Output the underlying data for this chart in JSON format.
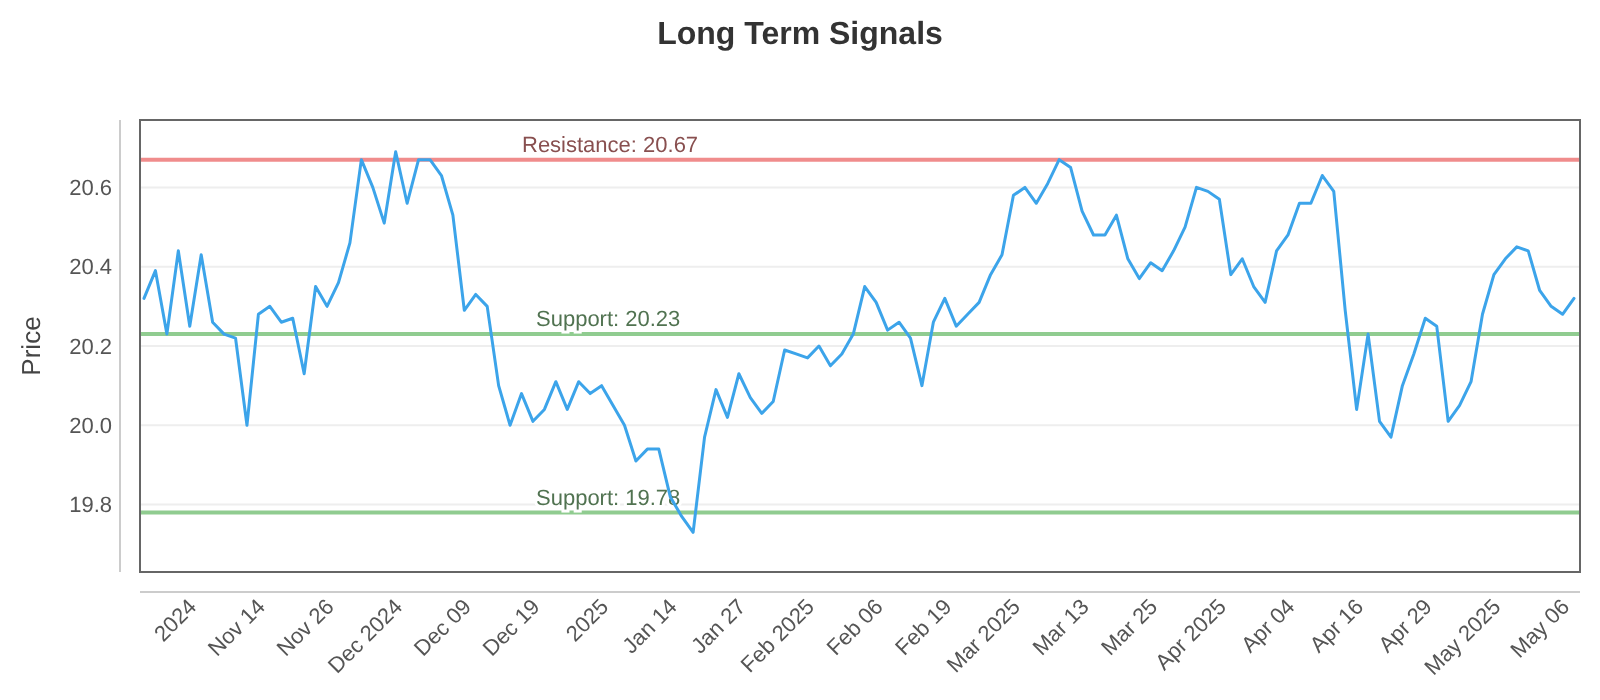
{
  "chart_data": {
    "type": "line",
    "title": "Long Term Signals",
    "ylabel": "Price",
    "categories": [
      null,
      null,
      null,
      null,
      "2024",
      null,
      null,
      null,
      null,
      null,
      "Nov 14",
      null,
      null,
      null,
      null,
      null,
      "Nov 26",
      null,
      null,
      null,
      null,
      null,
      "Dec 2024",
      null,
      null,
      null,
      null,
      null,
      "Dec 09",
      null,
      null,
      null,
      null,
      null,
      "Dec 19",
      null,
      null,
      null,
      null,
      null,
      "2025",
      null,
      null,
      null,
      null,
      null,
      "Jan 14",
      null,
      null,
      null,
      null,
      null,
      "Jan 27",
      null,
      null,
      null,
      null,
      null,
      "Feb 2025",
      null,
      null,
      null,
      null,
      null,
      "Feb 06",
      null,
      null,
      null,
      null,
      null,
      "Feb 19",
      null,
      null,
      null,
      null,
      null,
      "Mar 2025",
      null,
      null,
      null,
      null,
      null,
      "Mar 13",
      null,
      null,
      null,
      null,
      null,
      "Mar 25",
      null,
      null,
      null,
      null,
      null,
      "Apr 2025",
      null,
      null,
      null,
      null,
      null,
      "Apr 04",
      null,
      null,
      null,
      null,
      null,
      "Apr 16",
      null,
      null,
      null,
      null,
      null,
      "Apr 29",
      null,
      null,
      null,
      null,
      null,
      "May 2025",
      null,
      null,
      null,
      null,
      null,
      "May 06",
      null
    ],
    "series": [
      {
        "color": "#3ca4ea",
        "values": [
          20.32,
          20.39,
          20.23,
          20.44,
          20.25,
          20.43,
          20.26,
          20.23,
          20.22,
          20.0,
          20.28,
          20.3,
          20.26,
          20.27,
          20.13,
          20.35,
          20.3,
          20.36,
          20.46,
          20.67,
          20.6,
          20.51,
          20.69,
          20.56,
          20.67,
          20.67,
          20.63,
          20.53,
          20.29,
          20.33,
          20.3,
          20.1,
          20.0,
          20.08,
          20.01,
          20.04,
          20.11,
          20.04,
          20.11,
          20.08,
          20.1,
          20.05,
          20.0,
          19.91,
          19.94,
          19.94,
          19.82,
          19.77,
          19.73,
          19.97,
          20.09,
          20.02,
          20.13,
          20.07,
          20.03,
          20.06,
          20.19,
          20.18,
          20.17,
          20.2,
          20.15,
          20.18,
          20.23,
          20.35,
          20.31,
          20.24,
          20.26,
          20.22,
          20.1,
          20.26,
          20.32,
          20.25,
          20.28,
          20.31,
          20.38,
          20.43,
          20.58,
          20.6,
          20.56,
          20.61,
          20.67,
          20.65,
          20.54,
          20.48,
          20.48,
          20.53,
          20.42,
          20.37,
          20.41,
          20.39,
          20.44,
          20.5,
          20.6,
          20.59,
          20.57,
          20.38,
          20.42,
          20.35,
          20.31,
          20.44,
          20.48,
          20.56,
          20.56,
          20.63,
          20.59,
          20.29,
          20.04,
          20.23,
          20.01,
          19.97,
          20.1,
          20.18,
          20.27,
          20.25,
          20.01,
          20.05,
          20.11,
          20.28,
          20.38,
          20.42,
          20.45,
          20.44,
          20.34,
          20.3,
          20.28,
          20.32
        ]
      }
    ],
    "ylim": [
      19.63,
      20.77
    ],
    "yticks": [
      19.8,
      {
        "value": 20,
        "label": "20.0"
      },
      20.2,
      20.4,
      20.6
    ],
    "grid": "y",
    "marker": "none",
    "line_style": "solid",
    "ref_lines": [
      {
        "axis": "y",
        "value": 20.67,
        "label": "Resistance: 20.67",
        "color": "#f08c8c"
      },
      {
        "axis": "y",
        "value": 20.23,
        "label": "Support: 20.23",
        "color": "#90cc90"
      },
      {
        "axis": "y",
        "value": 19.78,
        "label": "Support: 19.78",
        "color": "#90cc90"
      }
    ]
  }
}
